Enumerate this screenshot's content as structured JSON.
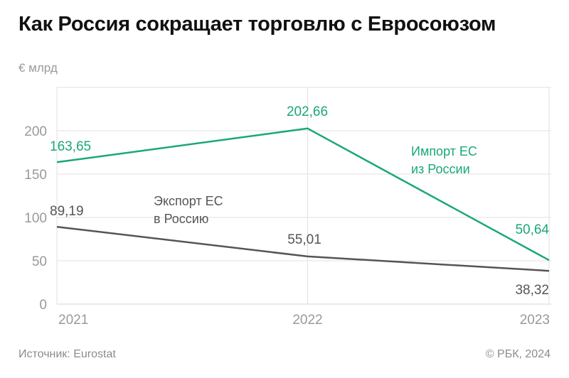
{
  "title": "Как Россия сокращает торговлю с Евросоюзом",
  "unit_label": "€ млрд",
  "source": "Источник: Eurostat",
  "copyright": "© РБК, 2024",
  "colors": {
    "import": "#1aa874",
    "export": "#555555",
    "grid": "#e2e2e2",
    "axis_text": "#999999"
  },
  "chart_data": {
    "type": "line",
    "x": [
      "2021",
      "2022",
      "2023"
    ],
    "ylim": [
      0,
      250
    ],
    "yticks": [
      0,
      50,
      100,
      150,
      200
    ],
    "grid": true,
    "series": [
      {
        "name": "Импорт ЕС из России",
        "label_lines": [
          "Импорт ЕС",
          "из России"
        ],
        "values": [
          163.65,
          202.66,
          50.64
        ],
        "value_labels": [
          "163,65",
          "202,66",
          "50,64"
        ]
      },
      {
        "name": "Экспорт ЕС в Россию",
        "label_lines": [
          "Экспорт ЕС",
          "в Россию"
        ],
        "values": [
          89.19,
          55.01,
          38.32
        ],
        "value_labels": [
          "89,19",
          "55,01",
          "38,32"
        ]
      }
    ]
  }
}
